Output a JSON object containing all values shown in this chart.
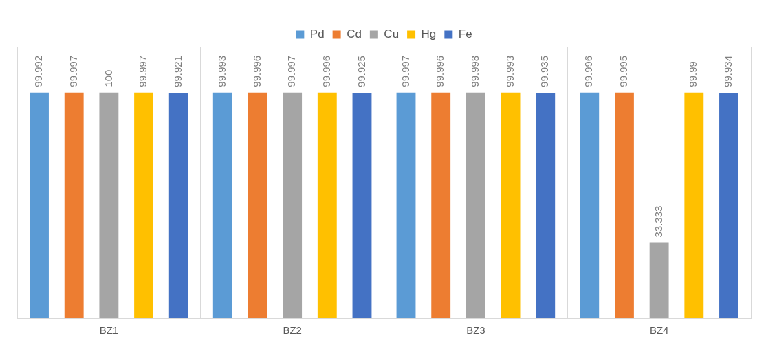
{
  "chart_data": {
    "type": "bar",
    "categories": [
      "BZ1",
      "BZ2",
      "BZ3",
      "BZ4"
    ],
    "series": [
      {
        "name": "Pd",
        "color": "#5b9bd5",
        "values": [
          99.992,
          99.993,
          99.997,
          99.996
        ]
      },
      {
        "name": "Cd",
        "color": "#ed7d31",
        "values": [
          99.997,
          99.996,
          99.996,
          99.995
        ]
      },
      {
        "name": "Cu",
        "color": "#a5a5a5",
        "values": [
          100,
          99.997,
          99.998,
          33.333
        ]
      },
      {
        "name": "Hg",
        "color": "#ffc000",
        "values": [
          99.997,
          99.996,
          99.993,
          99.99
        ]
      },
      {
        "name": "Fe",
        "color": "#4472c4",
        "values": [
          99.921,
          99.925,
          99.935,
          99.934
        ]
      }
    ],
    "ylim": [
      0,
      120
    ],
    "data_labels": true,
    "legend": "top",
    "grid": "x"
  }
}
